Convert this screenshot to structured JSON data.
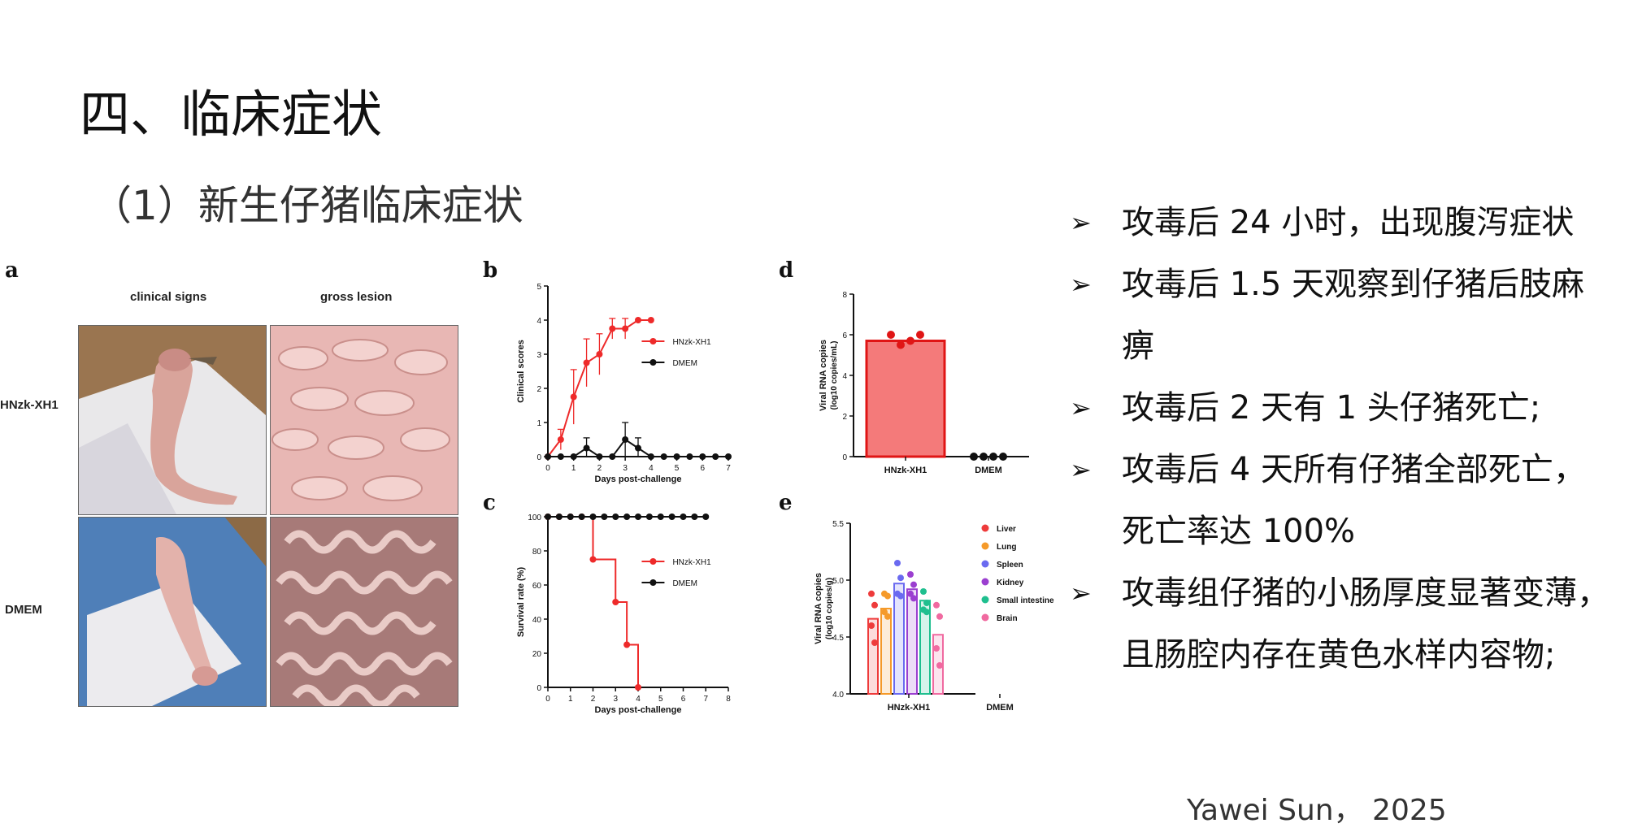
{
  "slide": {
    "title": "四、临床症状",
    "subtitle": "（1）新生仔猪临床症状",
    "author": "Yawei Sun， 2025"
  },
  "bullets": [
    {
      "arrow": "➢",
      "text": "攻毒后 24 小时，出现腹泻症状"
    },
    {
      "arrow": "➢",
      "text": "攻毒后 1.5 天观察到仔猪后肢麻",
      "cont": "痹"
    },
    {
      "arrow": "➢",
      "text": "攻毒后 2 天有 1 头仔猪死亡;"
    },
    {
      "arrow": "➢",
      "text": "攻毒后 4 天所有仔猪全部死亡，",
      "cont": "死亡率达 100%"
    },
    {
      "arrow": "➢",
      "text": "攻毒组仔猪的小肠厚度显著变薄，",
      "cont": "且肠腔内存在黄色水样内容物;"
    }
  ],
  "panel_a": {
    "letter": "a",
    "col_headers": [
      "clinical signs",
      "gross lesion"
    ],
    "row_labels": [
      "HNzk-XH1",
      "DMEM"
    ]
  },
  "colors": {
    "hnzk": "#ee2a2a",
    "dmem": "#111111"
  },
  "chart_data": [
    {
      "letter": "b",
      "type": "line",
      "xlabel": "Days post-challenge",
      "ylabel": "Clinical scores",
      "xlim": [
        0,
        7
      ],
      "ylim": [
        0,
        5
      ],
      "xticks": [
        "0",
        "1",
        "2",
        "3",
        "4",
        "5",
        "6",
        "7"
      ],
      "yticks": [
        "0",
        "1",
        "2",
        "3",
        "4",
        "5"
      ],
      "legend": [
        "HNzk-XH1",
        "DMEM"
      ],
      "series": [
        {
          "name": "HNzk-XH1",
          "color": "#ee2a2a",
          "x": [
            0,
            0.5,
            1,
            1.5,
            2,
            2.5,
            3,
            3.5,
            4
          ],
          "y": [
            0,
            0.5,
            1.75,
            2.75,
            3,
            3.75,
            3.75,
            4,
            4
          ],
          "err": [
            0,
            0.3,
            0.8,
            0.7,
            0.6,
            0.3,
            0.3,
            0,
            0
          ]
        },
        {
          "name": "DMEM",
          "color": "#111111",
          "x": [
            0,
            0.5,
            1,
            1.5,
            2,
            2.5,
            3,
            3.5,
            4,
            4.5,
            5,
            5.5,
            6,
            6.5,
            7
          ],
          "y": [
            0,
            0,
            0,
            0.25,
            0,
            0,
            0.5,
            0.25,
            0,
            0,
            0,
            0,
            0,
            0,
            0
          ],
          "err": [
            0,
            0,
            0,
            0.3,
            0,
            0,
            0.5,
            0.3,
            0,
            0,
            0,
            0,
            0,
            0,
            0
          ]
        }
      ]
    },
    {
      "letter": "c",
      "type": "line",
      "xlabel": "Days post-challenge",
      "ylabel": "Survival rate (%)",
      "xlim": [
        0,
        8
      ],
      "ylim": [
        0,
        100
      ],
      "xticks": [
        "0",
        "1",
        "2",
        "3",
        "4",
        "5",
        "6",
        "7",
        "8"
      ],
      "yticks": [
        "0",
        "20",
        "40",
        "60",
        "80",
        "100"
      ],
      "legend": [
        "HNzk-XH1",
        "DMEM"
      ],
      "series": [
        {
          "name": "HNzk-XH1",
          "color": "#ee2a2a",
          "step": true,
          "x": [
            0,
            0.5,
            1,
            1.5,
            2,
            3,
            3.5,
            4
          ],
          "y": [
            100,
            100,
            100,
            100,
            75,
            50,
            25,
            0
          ]
        },
        {
          "name": "DMEM",
          "color": "#111111",
          "x": [
            0,
            0.5,
            1,
            1.5,
            2,
            2.5,
            3,
            3.5,
            4,
            4.5,
            5,
            5.5,
            6,
            6.5,
            7
          ],
          "y": [
            100,
            100,
            100,
            100,
            100,
            100,
            100,
            100,
            100,
            100,
            100,
            100,
            100,
            100,
            100
          ]
        }
      ]
    },
    {
      "letter": "d",
      "type": "bar",
      "ylabel": "Viral RNA copies",
      "ylabel2": "(log10 copies/mL)",
      "categories": [
        "HNzk-XH1",
        "DMEM"
      ],
      "values": [
        5.7,
        0
      ],
      "points": [
        [
          6.0,
          5.5,
          5.7,
          6.0
        ],
        [
          0,
          0,
          0,
          0
        ]
      ],
      "ylim": [
        0,
        8
      ],
      "yticks": [
        "0",
        "2",
        "4",
        "6",
        "8"
      ],
      "colors": [
        "#f47a7a",
        "#111111"
      ]
    },
    {
      "letter": "e",
      "type": "bar",
      "ylabel": "Viral RNA copies",
      "ylabel2": "(log10 copies/g)",
      "categories": [
        "HNzk-XH1",
        "DMEM"
      ],
      "ylim": [
        4.0,
        5.5
      ],
      "yticks": [
        "4.0",
        "4.5",
        "5.0",
        "5.5"
      ],
      "series": [
        {
          "name": "Liver",
          "color": "#ee3b3b",
          "value": 4.66,
          "points": [
            4.88,
            4.78,
            4.6,
            4.45
          ]
        },
        {
          "name": "Lung",
          "color": "#f59a2a",
          "value": 4.75,
          "points": [
            4.88,
            4.86,
            4.72,
            4.68
          ]
        },
        {
          "name": "Spleen",
          "color": "#6a6af0",
          "value": 4.97,
          "points": [
            5.15,
            5.02,
            4.88,
            4.86
          ]
        },
        {
          "name": "Kidney",
          "color": "#9b3fd0",
          "value": 4.92,
          "points": [
            5.05,
            4.96,
            4.88,
            4.84
          ]
        },
        {
          "name": "Small intestine",
          "color": "#1fbf8f",
          "value": 4.82,
          "points": [
            4.9,
            4.8,
            4.74,
            4.72
          ]
        },
        {
          "name": "Brain",
          "color": "#f06aa0",
          "value": 4.52,
          "points": [
            4.78,
            4.68,
            4.4,
            4.25
          ]
        }
      ]
    }
  ]
}
